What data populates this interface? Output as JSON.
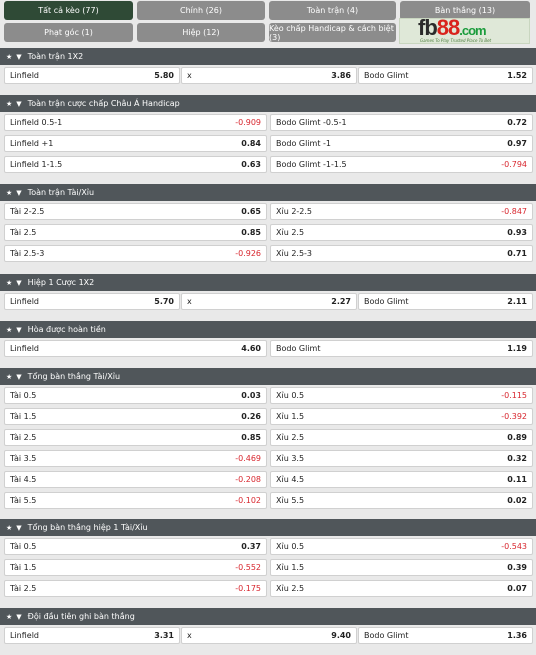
{
  "tabs": [
    {
      "label": "Tất cả kèo (77)",
      "active": true
    },
    {
      "label": "Chính (26)",
      "active": false
    },
    {
      "label": "Toàn trận (4)",
      "active": false
    },
    {
      "label": "Bàn thắng (13)",
      "active": false
    },
    {
      "label": "Phạt góc (1)",
      "active": false
    },
    {
      "label": "Hiệp (12)",
      "active": false
    },
    {
      "label": "Kèo chấp Handicap & cách biệt (3)",
      "active": false
    }
  ],
  "logo": {
    "brand": "fb88.com",
    "slogan": "Games To Play  Trusted Place To Bet"
  },
  "sections": [
    {
      "title": "Toàn trận 1X2",
      "rows": [
        [
          {
            "label": "Linfield",
            "odd": "5.80"
          },
          {
            "label": "x",
            "odd": "3.86"
          },
          {
            "label": "Bodo Glimt",
            "odd": "1.52"
          }
        ]
      ]
    },
    {
      "title": "Toàn trận cược chấp Châu Á Handicap",
      "rows": [
        [
          {
            "label": "Linfield 0.5-1",
            "odd": "-0.909"
          },
          {
            "label": "Bodo Glimt -0.5-1",
            "odd": "0.72"
          }
        ],
        [
          {
            "label": "Linfield +1",
            "odd": "0.84"
          },
          {
            "label": "Bodo Glimt -1",
            "odd": "0.97"
          }
        ],
        [
          {
            "label": "Linfield 1-1.5",
            "odd": "0.63"
          },
          {
            "label": "Bodo Glimt -1-1.5",
            "odd": "-0.794"
          }
        ]
      ]
    },
    {
      "title": "Toàn trận Tài/Xỉu",
      "rows": [
        [
          {
            "label": "Tài 2-2.5",
            "odd": "0.65"
          },
          {
            "label": "Xỉu 2-2.5",
            "odd": "-0.847"
          }
        ],
        [
          {
            "label": "Tài 2.5",
            "odd": "0.85"
          },
          {
            "label": "Xỉu 2.5",
            "odd": "0.93"
          }
        ],
        [
          {
            "label": "Tài 2.5-3",
            "odd": "-0.926"
          },
          {
            "label": "Xỉu 2.5-3",
            "odd": "0.71"
          }
        ]
      ]
    },
    {
      "title": "Hiệp 1 Cược 1X2",
      "rows": [
        [
          {
            "label": "Linfield",
            "odd": "5.70"
          },
          {
            "label": "x",
            "odd": "2.27"
          },
          {
            "label": "Bodo Glimt",
            "odd": "2.11"
          }
        ]
      ]
    },
    {
      "title": "Hòa được hoàn tiền",
      "rows": [
        [
          {
            "label": "Linfield",
            "odd": "4.60"
          },
          {
            "label": "Bodo Glimt",
            "odd": "1.19"
          }
        ]
      ]
    },
    {
      "title": "Tổng bàn thắng Tài/Xỉu",
      "rows": [
        [
          {
            "label": "Tài 0.5",
            "odd": "0.03"
          },
          {
            "label": "Xỉu 0.5",
            "odd": "-0.115"
          }
        ],
        [
          {
            "label": "Tài 1.5",
            "odd": "0.26"
          },
          {
            "label": "Xỉu 1.5",
            "odd": "-0.392"
          }
        ],
        [
          {
            "label": "Tài 2.5",
            "odd": "0.85"
          },
          {
            "label": "Xỉu 2.5",
            "odd": "0.89"
          }
        ],
        [
          {
            "label": "Tài 3.5",
            "odd": "-0.469"
          },
          {
            "label": "Xỉu 3.5",
            "odd": "0.32"
          }
        ],
        [
          {
            "label": "Tài 4.5",
            "odd": "-0.208"
          },
          {
            "label": "Xỉu 4.5",
            "odd": "0.11"
          }
        ],
        [
          {
            "label": "Tài 5.5",
            "odd": "-0.102"
          },
          {
            "label": "Xỉu 5.5",
            "odd": "0.02"
          }
        ]
      ]
    },
    {
      "title": "Tổng bàn thắng hiệp 1 Tài/Xỉu",
      "rows": [
        [
          {
            "label": "Tài 0.5",
            "odd": "0.37"
          },
          {
            "label": "Xỉu 0.5",
            "odd": "-0.543"
          }
        ],
        [
          {
            "label": "Tài 1.5",
            "odd": "-0.552"
          },
          {
            "label": "Xỉu 1.5",
            "odd": "0.39"
          }
        ],
        [
          {
            "label": "Tài 2.5",
            "odd": "-0.175"
          },
          {
            "label": "Xỉu 2.5",
            "odd": "0.07"
          }
        ]
      ]
    },
    {
      "title": "Đội đầu tiên ghi bàn thắng",
      "rows": [
        [
          {
            "label": "Linfield",
            "odd": "3.31"
          },
          {
            "label": "x",
            "odd": "9.40"
          },
          {
            "label": "Bodo Glimt",
            "odd": "1.36"
          }
        ]
      ]
    }
  ],
  "colors": {
    "header_bg": "#50565a",
    "active_tab": "#2f4a36",
    "tab_bg": "#8c8c8c",
    "negative": "#d8262e"
  }
}
